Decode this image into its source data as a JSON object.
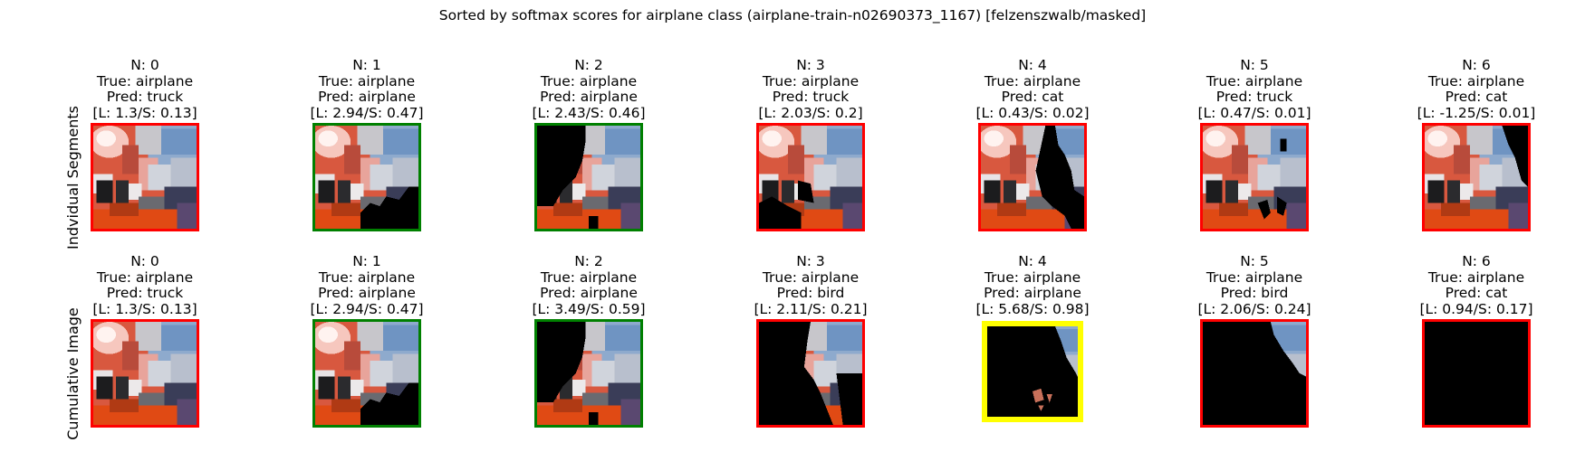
{
  "title": "Sorted by softmax scores for airplane class (airplane-train-n02690373_1167) [felzenszwalb/masked]",
  "row_labels": [
    "Indvidual Segments",
    "Cumulative Image"
  ],
  "colors": {
    "red": "#ff0000",
    "green": "#008000",
    "yellow": "#ffff00"
  },
  "chart_data": {
    "type": "image-grid",
    "title": "Sorted by softmax scores for airplane class (airplane-train-n02690373_1167) [felzenszwalb/masked]",
    "rows": [
      {
        "label": "Indvidual Segments",
        "panels": [
          {
            "n": "N: 0",
            "true": "True: airplane",
            "pred": "Pred: truck",
            "ls": "[L: 1.3/S: 0.13]",
            "border": "red",
            "mask": "full"
          },
          {
            "n": "N: 1",
            "true": "True: airplane",
            "pred": "Pred: airplane",
            "ls": "[L: 2.94/S: 0.47]",
            "border": "green",
            "mask": "bottom_right_black"
          },
          {
            "n": "N: 2",
            "true": "True: airplane",
            "pred": "Pred: airplane",
            "ls": "[L: 2.43/S: 0.46]",
            "border": "green",
            "mask": "left_black"
          },
          {
            "n": "N: 3",
            "true": "True: airplane",
            "pred": "Pred: truck",
            "ls": "[L: 2.03/S: 0.2]",
            "border": "red",
            "mask": "bottom_left_black"
          },
          {
            "n": "N: 4",
            "true": "True: airplane",
            "pred": "Pred: cat",
            "ls": "[L: 0.43/S: 0.02]",
            "border": "red",
            "mask": "right_black"
          },
          {
            "n": "N: 5",
            "true": "True: airplane",
            "pred": "Pred: truck",
            "ls": "[L: 0.47/S: 0.01]",
            "border": "red",
            "mask": "small_black"
          },
          {
            "n": "N: 6",
            "true": "True: airplane",
            "pred": "Pred: cat",
            "ls": "[L: -1.25/S: 0.01]",
            "border": "red",
            "mask": "top_right_black"
          }
        ]
      },
      {
        "label": "Cumulative Image",
        "panels": [
          {
            "n": "N: 0",
            "true": "True: airplane",
            "pred": "Pred: truck",
            "ls": "[L: 1.3/S: 0.13]",
            "border": "red",
            "mask": "full"
          },
          {
            "n": "N: 1",
            "true": "True: airplane",
            "pred": "Pred: airplane",
            "ls": "[L: 2.94/S: 0.47]",
            "border": "green",
            "mask": "bottom_right_black"
          },
          {
            "n": "N: 2",
            "true": "True: airplane",
            "pred": "Pred: airplane",
            "ls": "[L: 3.49/S: 0.59]",
            "border": "green",
            "mask": "left_black"
          },
          {
            "n": "N: 3",
            "true": "True: airplane",
            "pred": "Pred: bird",
            "ls": "[L: 2.11/S: 0.21]",
            "border": "red",
            "mask": "mostly_black"
          },
          {
            "n": "N: 4",
            "true": "True: airplane",
            "pred": "Pred: airplane",
            "ls": "[L: 5.68/S: 0.98]",
            "border": "yellow",
            "mask": "sliver_black"
          },
          {
            "n": "N: 5",
            "true": "True: airplane",
            "pred": "Pred: bird",
            "ls": "[L: 2.06/S: 0.24]",
            "border": "red",
            "mask": "corner_black"
          },
          {
            "n": "N: 6",
            "true": "True: airplane",
            "pred": "Pred: cat",
            "ls": "[L: 0.94/S: 0.17]",
            "border": "red",
            "mask": "all_black"
          }
        ]
      }
    ]
  }
}
